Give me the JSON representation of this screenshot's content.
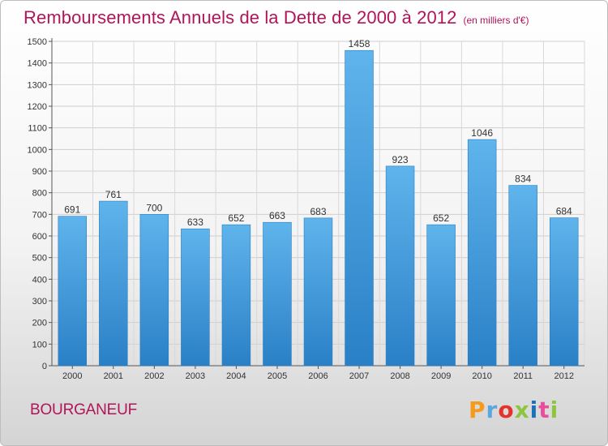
{
  "header": {
    "title": "Remboursements Annuels de la Dette de 2000 à 2012",
    "subtitle": "(en milliers d'€)"
  },
  "footer": {
    "location": "BOURGANEUF",
    "logo_text": "Proxiti",
    "logo_colors": [
      "#f59a1c",
      "#5aa7e0",
      "#e6332a",
      "#8cc63f",
      "#1d71b8",
      "#e94e9b",
      "#8cc63f"
    ]
  },
  "colors": {
    "bar": "#3590d8",
    "bar_light": "#5fb4ec",
    "title": "#b0155a"
  },
  "chart_data": {
    "type": "bar",
    "title": "Remboursements Annuels de la Dette de 2000 à 2012",
    "subtitle": "(en milliers d'€)",
    "categories": [
      "2000",
      "2001",
      "2002",
      "2003",
      "2004",
      "2005",
      "2006",
      "2007",
      "2008",
      "2009",
      "2010",
      "2011",
      "2012"
    ],
    "values": [
      691,
      761,
      700,
      633,
      652,
      663,
      683,
      1458,
      923,
      652,
      1046,
      834,
      684
    ],
    "ylim": [
      0,
      1500
    ],
    "yticks": [
      0,
      100,
      200,
      300,
      400,
      500,
      600,
      700,
      800,
      900,
      1000,
      1100,
      1200,
      1300,
      1400,
      1500
    ],
    "grid": true,
    "data_labels": true
  }
}
